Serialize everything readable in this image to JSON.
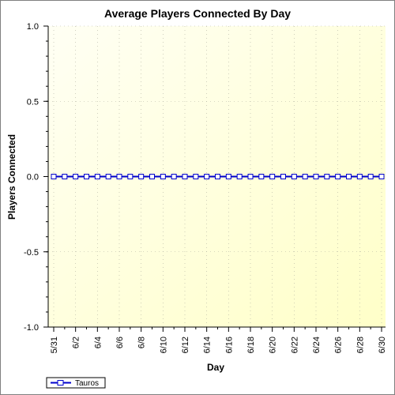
{
  "chart_data": {
    "type": "line",
    "title": "Average Players Connected By Day",
    "xlabel": "Day",
    "ylabel": "Players Connected",
    "ylim": [
      -1.0,
      1.0
    ],
    "y_ticks": [
      "1.0",
      "0.5",
      "0.0",
      "-0.5",
      "-1.0"
    ],
    "y_tick_values": [
      1.0,
      0.5,
      0.0,
      -0.5,
      -1.0
    ],
    "x": [
      "5/31",
      "6/1",
      "6/2",
      "6/3",
      "6/4",
      "6/5",
      "6/6",
      "6/7",
      "6/8",
      "6/9",
      "6/10",
      "6/11",
      "6/12",
      "6/13",
      "6/14",
      "6/15",
      "6/16",
      "6/17",
      "6/18",
      "6/19",
      "6/20",
      "6/21",
      "6/22",
      "6/23",
      "6/24",
      "6/25",
      "6/26",
      "6/27",
      "6/28",
      "6/29",
      "6/30"
    ],
    "x_tick_labels": [
      "5/31",
      "6/2",
      "6/4",
      "6/6",
      "6/8",
      "6/10",
      "6/12",
      "6/14",
      "6/16",
      "6/18",
      "6/20",
      "6/22",
      "6/24",
      "6/26",
      "6/28",
      "6/30"
    ],
    "series": [
      {
        "name": "Tauros",
        "color": "#0000cc",
        "values": [
          0,
          0,
          0,
          0,
          0,
          0,
          0,
          0,
          0,
          0,
          0,
          0,
          0,
          0,
          0,
          0,
          0,
          0,
          0,
          0,
          0,
          0,
          0,
          0,
          0,
          0,
          0,
          0,
          0,
          0,
          0
        ]
      }
    ],
    "grid": true,
    "legend_position": "bottom-left",
    "plot_background": [
      "#fffff0",
      "#ffffcc"
    ]
  }
}
